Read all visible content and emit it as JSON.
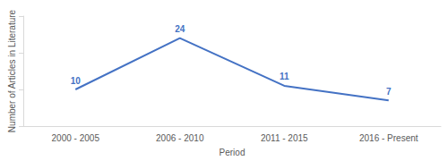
{
  "chart_data": {
    "type": "line",
    "categories": [
      "2000 - 2005",
      "2006 - 2010",
      "2011 - 2015",
      "2016 - Present"
    ],
    "values": [
      10,
      24,
      11,
      7
    ],
    "color": "#4472c4",
    "xlabel": "Period",
    "ylabel": "Number of Articles in Literature",
    "ylim": [
      0,
      30
    ],
    "yticks": [
      0,
      10,
      20,
      30
    ],
    "grid": false,
    "data_labels": true,
    "tick_labels": "x"
  }
}
